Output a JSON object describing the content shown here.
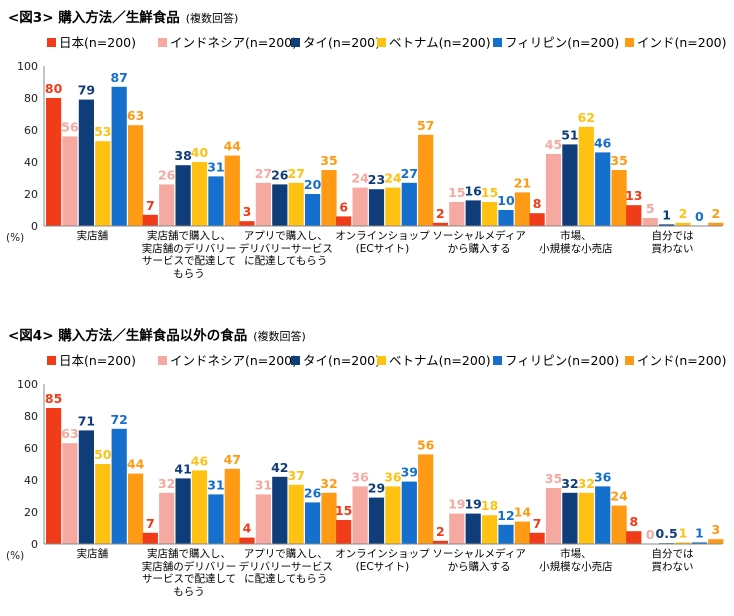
{
  "colors": {
    "Japan": "#f03c18",
    "Indonesia": "#f5a9a1",
    "Thailand": "#0f3d7a",
    "Vietnam": "#ffc212",
    "Philippines": "#156fcc",
    "India": "#ff9a14"
  },
  "chart_data": [
    {
      "type": "bar",
      "title": "<図3> 購入方法／生鮮食品",
      "subtitle": "(複数回答)",
      "ylabel": "(%)",
      "ylim": [
        0,
        100
      ],
      "yticks": [
        0,
        20,
        40,
        60,
        80,
        100
      ],
      "legend_position": "top",
      "categories": [
        "実店舗",
        "実店舗で購入し、\n実店舗のデリバリー\nサービスで配達して\nもらう",
        "アプリで購入し、\nデリバリーサービス\nに配達してもらう",
        "オンラインショップ\n(ECサイト)",
        "ソーシャルメディア\nから購入する",
        "市場、\n小規模な小売店",
        "自分では\n買わない"
      ],
      "series": [
        {
          "name": "日本(n=200)",
          "key": "Japan",
          "values": [
            80,
            7,
            3,
            6,
            2,
            8,
            13
          ]
        },
        {
          "name": "インドネシア(n=200)",
          "key": "Indonesia",
          "values": [
            56,
            26,
            27,
            24,
            15,
            45,
            5
          ]
        },
        {
          "name": "タイ(n=200)",
          "key": "Thailand",
          "values": [
            79,
            38,
            26,
            23,
            16,
            51,
            1
          ]
        },
        {
          "name": "ベトナム(n=200)",
          "key": "Vietnam",
          "values": [
            53,
            40,
            27,
            24,
            15,
            62,
            2
          ]
        },
        {
          "name": "フィリピン(n=200)",
          "key": "Philippines",
          "values": [
            87,
            31,
            20,
            27,
            10,
            46,
            0
          ]
        },
        {
          "name": "インド(n=200)",
          "key": "India",
          "values": [
            63,
            44,
            35,
            57,
            21,
            35,
            2
          ]
        }
      ]
    },
    {
      "type": "bar",
      "title": "<図4> 購入方法／生鮮食品以外の食品",
      "subtitle": "(複数回答)",
      "ylabel": "(%)",
      "ylim": [
        0,
        100
      ],
      "yticks": [
        0,
        20,
        40,
        60,
        80,
        100
      ],
      "legend_position": "top",
      "categories": [
        "実店舗",
        "実店舗で購入し、\n実店舗のデリバリー\nサービスで配達して\nもらう",
        "アプリで購入し、\nデリバリーサービス\nに配達してもらう",
        "オンラインショップ\n(ECサイト)",
        "ソーシャルメディア\nから購入する",
        "市場、\n小規模な小売店",
        "自分では\n買わない"
      ],
      "series": [
        {
          "name": "日本(n=200)",
          "key": "Japan",
          "values": [
            85,
            7,
            4,
            15,
            2,
            7,
            8
          ]
        },
        {
          "name": "インドネシア(n=200)",
          "key": "Indonesia",
          "values": [
            63,
            32,
            31,
            36,
            19,
            35,
            0
          ]
        },
        {
          "name": "タイ(n=200)",
          "key": "Thailand",
          "values": [
            71,
            41,
            42,
            29,
            19,
            32,
            0.5
          ]
        },
        {
          "name": "ベトナム(n=200)",
          "key": "Vietnam",
          "values": [
            50,
            46,
            37,
            36,
            18,
            32,
            1
          ]
        },
        {
          "name": "フィリピン(n=200)",
          "key": "Philippines",
          "values": [
            72,
            31,
            26,
            39,
            12,
            36,
            1
          ]
        },
        {
          "name": "インド(n=200)",
          "key": "India",
          "values": [
            44,
            47,
            32,
            56,
            14,
            24,
            3
          ]
        }
      ]
    }
  ]
}
